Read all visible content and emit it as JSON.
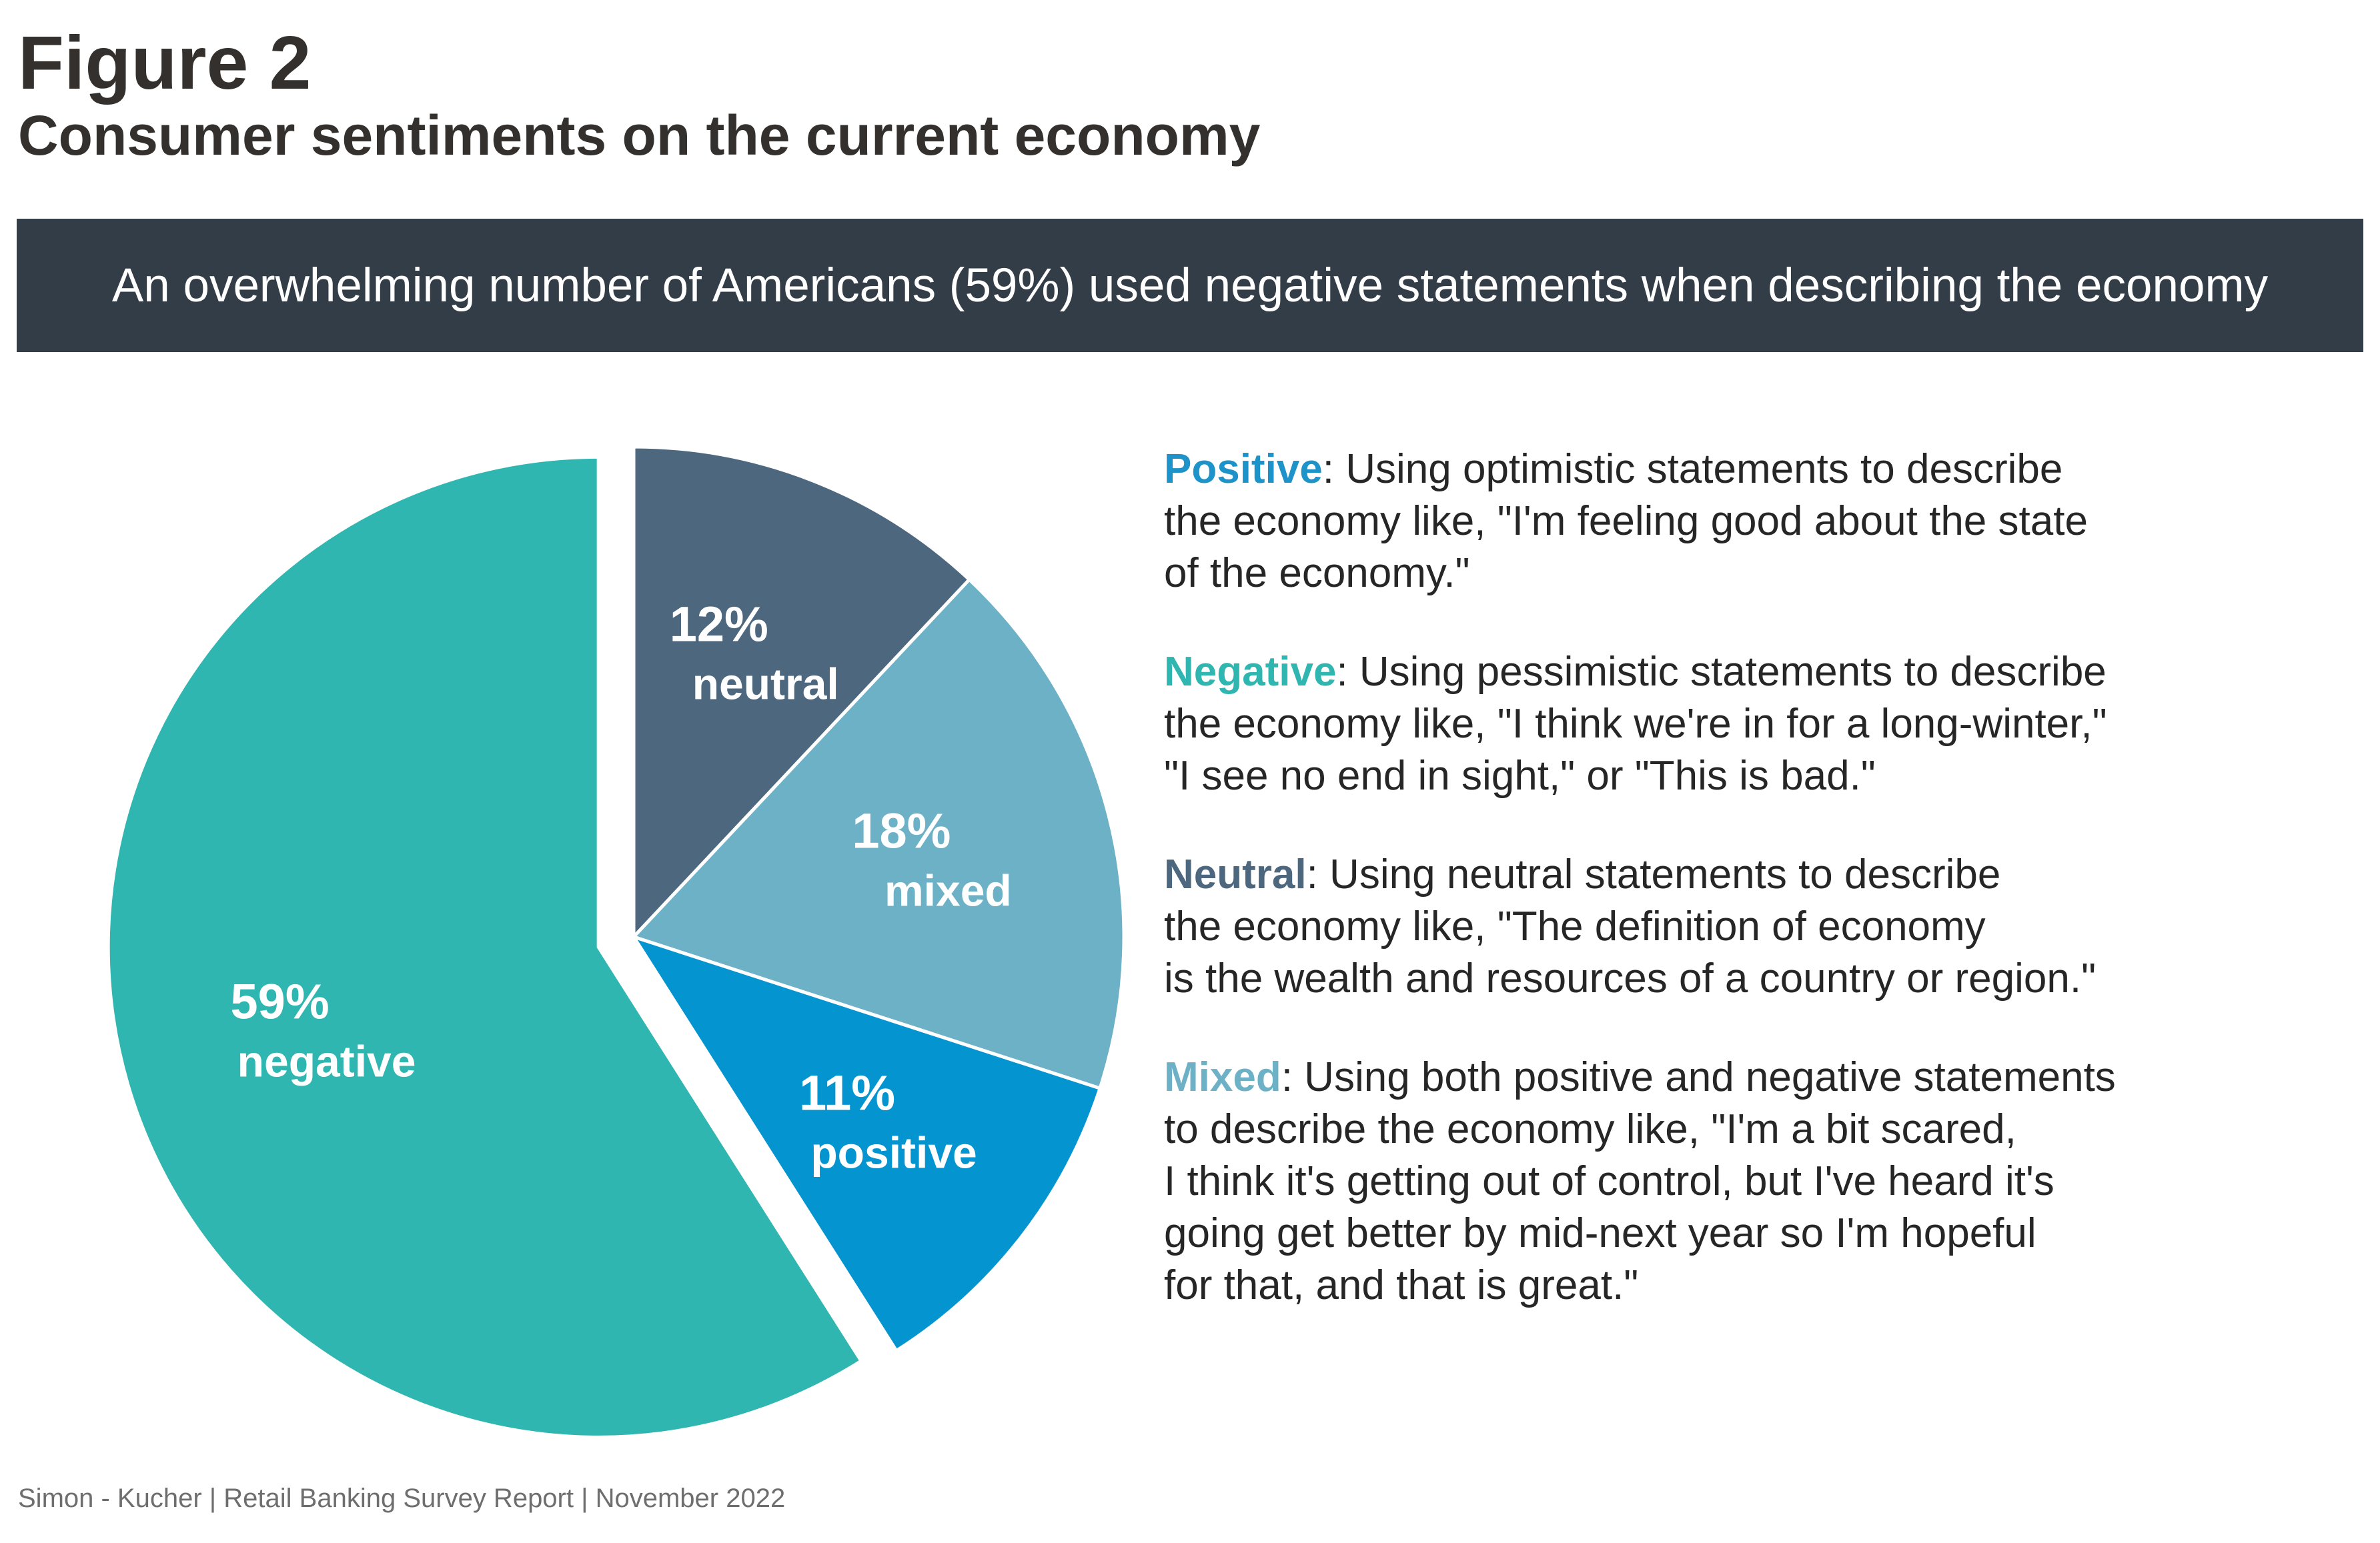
{
  "figure_label": "Figure 2",
  "title": "Consumer sentiments on the current economy",
  "banner": "An overwhelming number of Americans (59%) used negative statements when describing the economy",
  "chart_data": {
    "type": "pie",
    "unit": "%",
    "slices": [
      {
        "pct_label": "12%",
        "name": "neutral",
        "value": 12,
        "color": "#4d677e",
        "exploded": false
      },
      {
        "pct_label": "18%",
        "name": "mixed",
        "value": 18,
        "color": "#6db1c7",
        "exploded": false
      },
      {
        "pct_label": "11%",
        "name": "positive",
        "value": 11,
        "color": "#0494cf",
        "exploded": false
      },
      {
        "pct_label": "59%",
        "name": "negative",
        "value": 59,
        "color": "#30b6b0",
        "exploded": true
      }
    ]
  },
  "definitions": [
    {
      "term": "Positive",
      "color": "#1d93c9",
      "text": ": Using optimistic statements to describe\nthe economy like, \"I'm feeling good about the state\nof the economy.\""
    },
    {
      "term": "Negative",
      "color": "#30b6b0",
      "text": ": Using pessimistic statements to describe\n the economy like, \"I think we're in for a long-winter,\"\n \"I see no end in sight,\" or \"This is bad.\""
    },
    {
      "term": "Neutral",
      "color": "#4d677e",
      "text": ": Using neutral statements to describe\nthe economy like, \"The definition of economy\nis the wealth and resources of a country or region.\""
    },
    {
      "term": "Mixed",
      "color": "#6db1c7",
      "text": ": Using both positive and negative statements\nto describe the economy like, \"I'm a bit scared,\nI think it's getting out of control, but I've heard it's\ngoing get better by mid-next year so I'm hopeful\nfor that, and that is great.\""
    }
  ],
  "footer": "Simon  - Kucher  |  Retail Banking Survey Report  |  November 2022"
}
